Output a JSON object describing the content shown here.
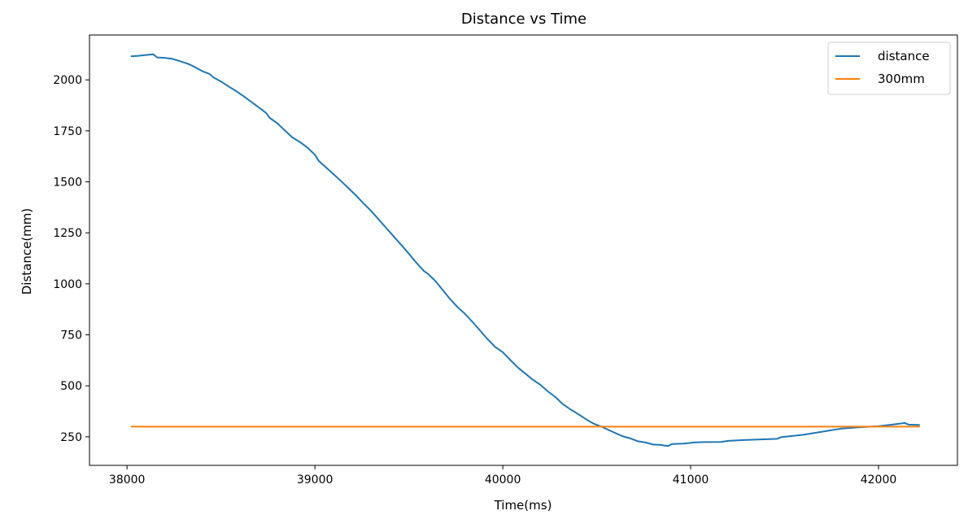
{
  "chart_data": {
    "type": "line",
    "title": "Distance vs Time",
    "xlabel": "Time(ms)",
    "ylabel": "Distance(mm)",
    "xlim": [
      37800,
      42420
    ],
    "ylim": [
      110,
      2220
    ],
    "xticks": [
      38000,
      39000,
      40000,
      41000,
      42000
    ],
    "yticks": [
      250,
      500,
      750,
      1000,
      1250,
      1500,
      1750,
      2000
    ],
    "grid": false,
    "legend_position": "upper right",
    "series": [
      {
        "name": "distance",
        "color": "#1f77b4",
        "x": [
          38020,
          38060,
          38100,
          38140,
          38160,
          38200,
          38240,
          38280,
          38320,
          38350,
          38400,
          38440,
          38460,
          38500,
          38540,
          38580,
          38620,
          38660,
          38700,
          38740,
          38760,
          38800,
          38840,
          38880,
          38920,
          38960,
          39000,
          39020,
          39060,
          39100,
          39140,
          39180,
          39220,
          39260,
          39300,
          39340,
          39380,
          39420,
          39460,
          39500,
          39540,
          39580,
          39600,
          39640,
          39680,
          39720,
          39760,
          39800,
          39840,
          39880,
          39920,
          39960,
          40000,
          40040,
          40080,
          40120,
          40160,
          40200,
          40240,
          40280,
          40320,
          40360,
          40400,
          40440,
          40480,
          40520,
          40560,
          40600,
          40640,
          40680,
          40720,
          40760,
          40800,
          40840,
          40880,
          40900,
          40960,
          41000,
          41020,
          41080,
          41160,
          41200,
          41280,
          41340,
          41400,
          41460,
          41480,
          41600,
          41700,
          41800,
          41900,
          42000,
          42100,
          42140,
          42160,
          42220
        ],
        "y": [
          2115,
          2118,
          2122,
          2125,
          2110,
          2108,
          2103,
          2092,
          2080,
          2068,
          2043,
          2028,
          2012,
          1992,
          1968,
          1945,
          1920,
          1893,
          1866,
          1838,
          1813,
          1787,
          1752,
          1718,
          1695,
          1668,
          1633,
          1603,
          1570,
          1537,
          1503,
          1468,
          1432,
          1393,
          1357,
          1315,
          1273,
          1232,
          1190,
          1148,
          1103,
          1063,
          1050,
          1015,
          970,
          925,
          885,
          852,
          812,
          770,
          728,
          690,
          665,
          627,
          590,
          560,
          530,
          505,
          473,
          445,
          410,
          385,
          362,
          338,
          316,
          302,
          285,
          268,
          252,
          242,
          228,
          222,
          212,
          210,
          205,
          215,
          217,
          220,
          223,
          224,
          225,
          230,
          234,
          236,
          238,
          240,
          248,
          260,
          275,
          290,
          297,
          302,
          313,
          318,
          310,
          308
        ]
      },
      {
        "name": "300mm",
        "color": "#ff7f0e",
        "x": [
          38020,
          42220
        ],
        "y": [
          300,
          300
        ]
      }
    ]
  }
}
